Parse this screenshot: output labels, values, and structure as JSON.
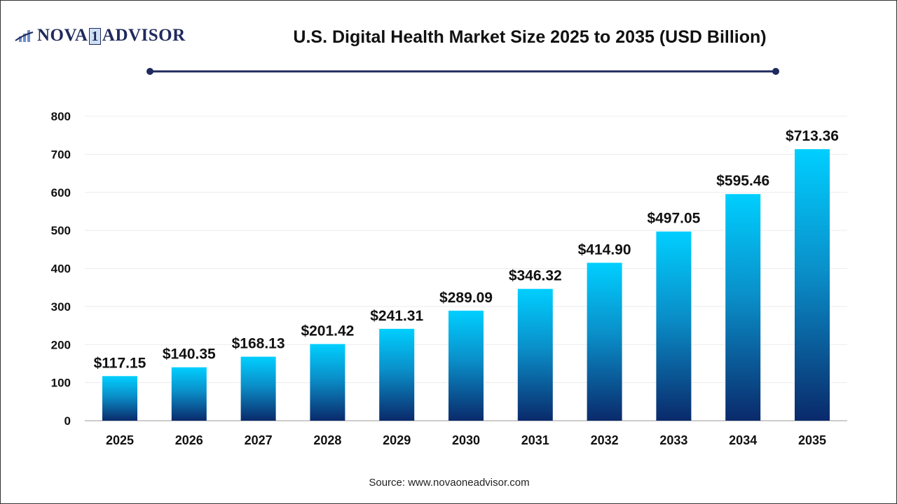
{
  "logo": {
    "text": "NOVA1ADVISOR",
    "part1": "NOVA",
    "part2": "1",
    "part3": "ADVISOR"
  },
  "colors": {
    "bar_top": "#00cfff",
    "bar_bottom": "#0a2a6b",
    "title_line": "#1f2a5c"
  },
  "source": "Source: www.novaoneadvisor.com",
  "chart_data": {
    "type": "bar",
    "title": "U.S. Digital Health Market Size 2025 to 2035 (USD Billion)",
    "xlabel": "",
    "ylabel": "",
    "categories": [
      "2025",
      "2026",
      "2027",
      "2028",
      "2029",
      "2030",
      "2031",
      "2032",
      "2033",
      "2034",
      "2035"
    ],
    "values": [
      117.15,
      140.35,
      168.13,
      201.42,
      241.31,
      289.09,
      346.32,
      414.9,
      497.05,
      595.46,
      713.36
    ],
    "data_labels": [
      "$117.15",
      "$140.35",
      "$168.13",
      "$201.42",
      "$241.31",
      "$289.09",
      "$346.32",
      "$414.90",
      "$497.05",
      "$595.46",
      "$713.36"
    ],
    "ylim": [
      0,
      800
    ],
    "yticks": [
      0,
      100,
      200,
      300,
      400,
      500,
      600,
      700,
      800
    ],
    "grid": true,
    "legend": "none"
  }
}
